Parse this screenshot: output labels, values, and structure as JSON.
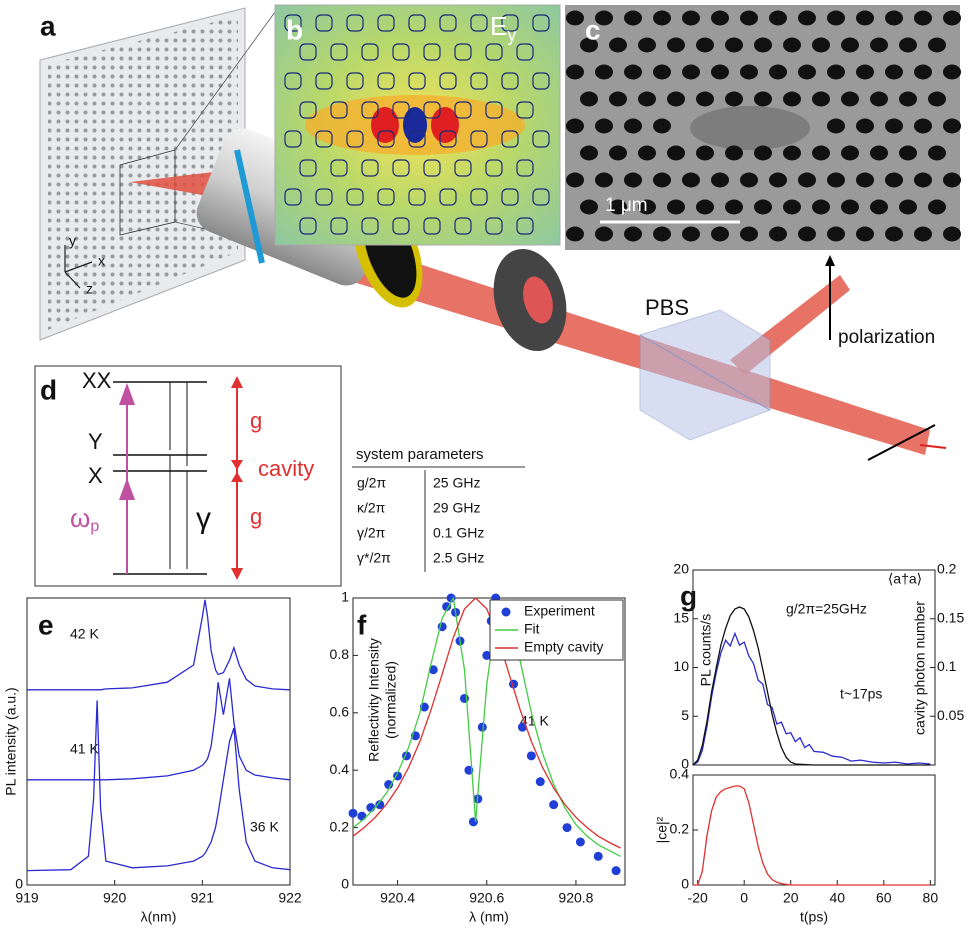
{
  "panel_labels": [
    "a",
    "b",
    "c",
    "d",
    "e",
    "f",
    "g"
  ],
  "panel_a": {
    "axes": [
      "y",
      "x",
      "z"
    ],
    "pbs": "PBS",
    "polarization": "polarization"
  },
  "panel_b": {
    "field": "E",
    "field_sub": "y"
  },
  "panel_c": {
    "scale": "1 μm"
  },
  "panel_d": {
    "levels": [
      "XX",
      "Y",
      "X"
    ],
    "omega": "ω",
    "omega_sub": "p",
    "gamma": "γ",
    "g_labels": [
      "g",
      "g"
    ],
    "cavity": "cavity",
    "table": {
      "header": "system parameters",
      "rows": [
        [
          "g/2π",
          "25 GHz"
        ],
        [
          "κ/2π",
          "29 GHz"
        ],
        [
          "γ/2π",
          "0.1 GHz"
        ],
        [
          "γ*/2π",
          "2.5 GHz"
        ]
      ]
    }
  },
  "chart_data": [
    {
      "type": "line",
      "xlabel": "λ(nm)",
      "ylabel": "PL intensity (a.u.)",
      "xlim": [
        919,
        922
      ],
      "xticks": [
        919,
        920,
        921,
        922
      ],
      "ylim": [
        0,
        3
      ],
      "yticks": [
        0
      ],
      "annotations": [
        "42 K",
        "41 K",
        "36 K"
      ],
      "x": [
        919,
        919.5,
        919.7,
        919.76,
        919.8,
        919.84,
        919.9,
        920.2,
        920.6,
        920.9,
        921.0,
        921.03,
        921.06,
        921.1,
        921.15,
        921.18,
        921.24,
        921.31,
        921.36,
        921.42,
        921.5,
        921.6,
        921.8,
        922
      ],
      "series": [
        {
          "color": "#2a2ad0",
          "values": [
            0.15,
            0.16,
            0.3,
            0.9,
            1.93,
            0.8,
            0.25,
            0.18,
            0.2,
            0.25,
            0.3,
            0.33,
            0.38,
            0.45,
            0.6,
            0.75,
            1.1,
            1.5,
            1.64,
            1.0,
            0.45,
            0.25,
            0.18,
            0.16
          ]
        },
        {
          "color": "#2a2ad0",
          "values": [
            1.1,
            1.1,
            1.1,
            1.1,
            1.1,
            1.1,
            1.1,
            1.11,
            1.14,
            1.2,
            1.25,
            1.28,
            1.32,
            1.45,
            1.8,
            2.12,
            1.78,
            2.16,
            1.7,
            1.35,
            1.2,
            1.15,
            1.12,
            1.1
          ]
        },
        {
          "color": "#2a2ad0",
          "values": [
            2.04,
            2.04,
            2.04,
            2.04,
            2.04,
            2.04,
            2.05,
            2.06,
            2.12,
            2.3,
            2.8,
            2.98,
            2.8,
            2.45,
            2.25,
            2.2,
            2.22,
            2.35,
            2.48,
            2.3,
            2.15,
            2.08,
            2.05,
            2.04
          ]
        }
      ]
    },
    {
      "type": "line",
      "xlabel": "λ (nm)",
      "ylabel": [
        "Reflectivity Intensity",
        "(normalized)"
      ],
      "xlim": [
        920.3,
        920.91
      ],
      "xticks": [
        920.4,
        920.6,
        920.8
      ],
      "ylim": [
        0,
        1
      ],
      "yticks": [
        0,
        0.2,
        0.4,
        0.6,
        0.8,
        1
      ],
      "annotations": [
        "41 K"
      ],
      "legend": "upper right",
      "x": [
        920.3,
        920.325,
        920.35,
        920.375,
        920.4,
        920.425,
        920.45,
        920.475,
        920.5,
        920.525,
        920.55,
        920.575,
        920.6,
        920.625,
        920.65,
        920.675,
        920.7,
        920.725,
        920.75,
        920.775,
        920.8,
        920.825,
        920.85,
        920.875,
        920.9
      ],
      "series": [
        {
          "name": "Experiment",
          "type": "scatter",
          "color": "#1f3fd6",
          "x": [
            920.3,
            920.32,
            920.34,
            920.36,
            920.38,
            920.4,
            920.42,
            920.44,
            920.46,
            920.48,
            920.5,
            920.51,
            920.52,
            920.53,
            920.54,
            920.55,
            920.56,
            920.57,
            920.58,
            920.59,
            920.6,
            920.61,
            920.62,
            920.63,
            920.64,
            920.66,
            920.68,
            920.7,
            920.72,
            920.75,
            920.78,
            920.81,
            920.85,
            920.89
          ],
          "values": [
            0.25,
            0.24,
            0.27,
            0.28,
            0.35,
            0.38,
            0.45,
            0.52,
            0.62,
            0.75,
            0.9,
            0.97,
            1.0,
            0.95,
            0.85,
            0.65,
            0.4,
            0.22,
            0.3,
            0.55,
            0.8,
            0.92,
            1.0,
            0.97,
            0.9,
            0.7,
            0.55,
            0.45,
            0.36,
            0.28,
            0.2,
            0.15,
            0.1,
            0.05
          ]
        },
        {
          "name": "Fit",
          "color": "#44cc44",
          "values": [
            0.2,
            0.23,
            0.27,
            0.32,
            0.39,
            0.48,
            0.6,
            0.77,
            0.93,
            1.0,
            0.75,
            0.22,
            0.7,
            0.98,
            0.95,
            0.78,
            0.6,
            0.46,
            0.35,
            0.27,
            0.21,
            0.17,
            0.14,
            0.12,
            0.1
          ]
        },
        {
          "name": "Empty cavity",
          "color": "#e03030",
          "values": [
            0.17,
            0.2,
            0.236,
            0.281,
            0.338,
            0.41,
            0.5,
            0.61,
            0.735,
            0.862,
            0.962,
            1,
            0.962,
            0.862,
            0.735,
            0.61,
            0.5,
            0.41,
            0.338,
            0.281,
            0.236,
            0.2,
            0.17,
            0.148,
            0.129
          ]
        }
      ]
    },
    {
      "type": "line",
      "title": "⟨a†a⟩",
      "ylabel": "PL counts/s",
      "y2label": "cavity photon number",
      "xlim": [
        -22,
        82
      ],
      "ylim": [
        0,
        20
      ],
      "yticks": [
        0,
        5,
        10,
        15,
        20
      ],
      "y2lim": [
        0,
        0.2
      ],
      "y2ticks": [
        0.05,
        0.1,
        0.15,
        0.2
      ],
      "annotations": [
        "g/2π=25GHz",
        "t~17ps"
      ],
      "series": [
        {
          "color": "#2a2ad0",
          "x": [
            -22,
            -20,
            -18,
            -16,
            -14,
            -12,
            -10,
            -8,
            -6,
            -4,
            -2,
            0,
            2,
            4,
            6,
            8,
            10,
            12,
            14,
            16,
            18,
            20,
            22,
            24,
            26,
            28,
            30,
            34,
            38,
            42,
            46,
            50,
            55,
            60,
            65,
            70,
            75,
            80
          ],
          "values": [
            0,
            0.3,
            1.5,
            4,
            7,
            9.5,
            11.5,
            12.8,
            12.2,
            13.5,
            12.3,
            12.6,
            11.2,
            10.4,
            8.7,
            8.3,
            6.2,
            5.9,
            4.2,
            4.4,
            3.2,
            3.3,
            2.4,
            2.8,
            1.8,
            2.1,
            1.4,
            1.3,
            0.9,
            0.8,
            0.4,
            0.5,
            0.3,
            0.2,
            0.3,
            0.1,
            0.2,
            0.1
          ]
        },
        {
          "color": "#111111",
          "axis": "y2",
          "x": [
            -22,
            -20,
            -18,
            -16,
            -14,
            -12,
            -10,
            -8,
            -6,
            -4,
            -2,
            0,
            2,
            4,
            6,
            8,
            10,
            12,
            14,
            16,
            18,
            20,
            22,
            30,
            80
          ],
          "values": [
            0,
            0.005,
            0.02,
            0.045,
            0.075,
            0.1,
            0.123,
            0.14,
            0.153,
            0.16,
            0.162,
            0.16,
            0.152,
            0.138,
            0.12,
            0.098,
            0.075,
            0.052,
            0.033,
            0.018,
            0.008,
            0.003,
            0.001,
            0,
            0
          ]
        }
      ]
    },
    {
      "type": "line",
      "xlabel": "t(ps)",
      "ylabel": "|ce|²",
      "xlim": [
        -22,
        82
      ],
      "xticks": [
        -20,
        0,
        20,
        40,
        60,
        80
      ],
      "ylim": [
        0,
        0.4
      ],
      "yticks": [
        0,
        0.2,
        0.4
      ],
      "series": [
        {
          "color": "#e03030",
          "x": [
            -22,
            -20,
            -18,
            -16,
            -14,
            -12,
            -10,
            -8,
            -6,
            -4,
            -2,
            0,
            2,
            4,
            6,
            8,
            10,
            12,
            14,
            16,
            20,
            80
          ],
          "values": [
            0,
            0,
            0.05,
            0.18,
            0.27,
            0.32,
            0.34,
            0.35,
            0.355,
            0.36,
            0.36,
            0.35,
            0.3,
            0.22,
            0.14,
            0.08,
            0.04,
            0.02,
            0.01,
            0.005,
            0,
            0
          ]
        }
      ]
    }
  ]
}
